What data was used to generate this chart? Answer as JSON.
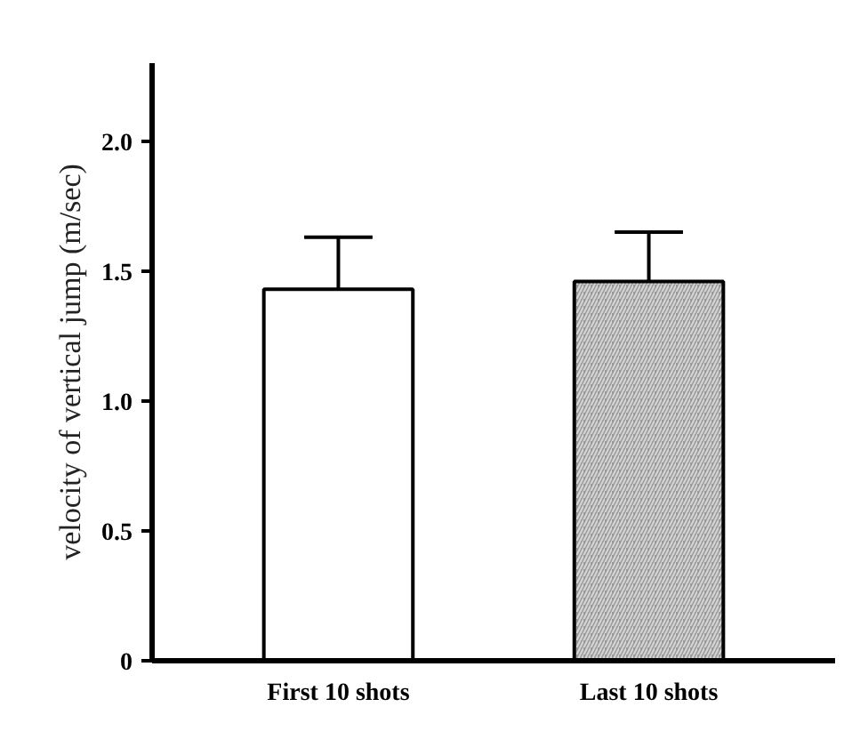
{
  "chart_data": {
    "type": "bar",
    "ylabel": "velocity of vertical jump (m/sec)",
    "categories": [
      "First 10 shots",
      "Last 10 shots"
    ],
    "values": [
      1.43,
      1.46
    ],
    "errors": [
      [
        1.43,
        1.63
      ],
      [
        1.46,
        1.65
      ]
    ],
    "colors": [
      "#ffffff",
      "#9a9a9a"
    ],
    "ylim": [
      0,
      2.3
    ],
    "yticks": [
      0,
      {
        "value": 0.5,
        "label": "0.5"
      },
      {
        "value": 1,
        "label": "1.0"
      },
      {
        "value": 1.5,
        "label": "1.5"
      },
      {
        "value": 2,
        "label": "2.0"
      }
    ],
    "grid": false
  }
}
